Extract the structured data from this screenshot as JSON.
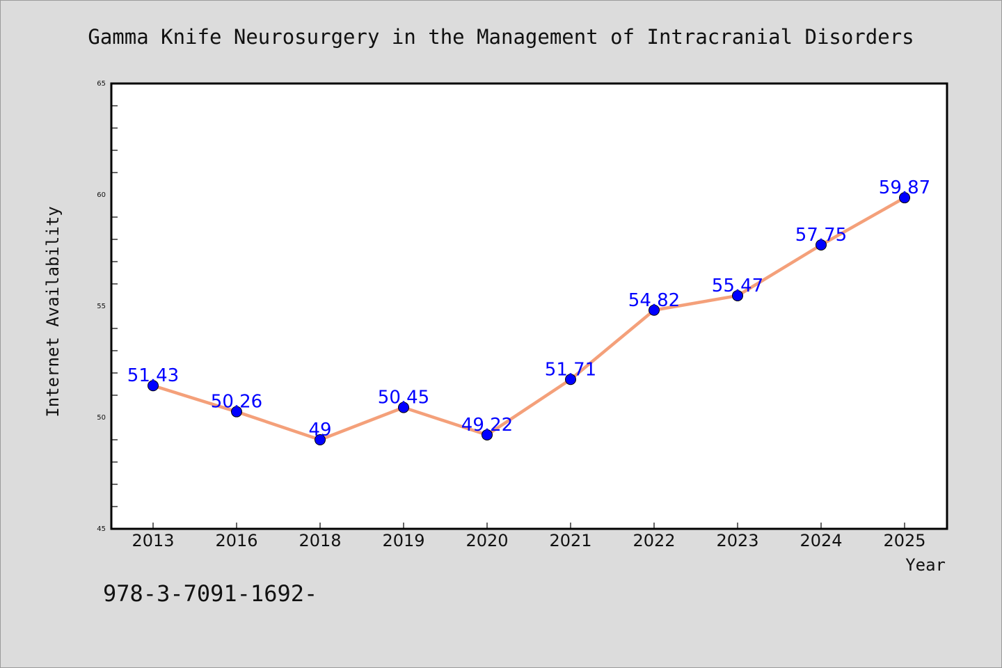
{
  "chart_data": {
    "type": "line",
    "title": "Gamma Knife Neurosurgery in the Management of Intracranial Disorders",
    "xlabel": "Year",
    "ylabel": "Internet Availability",
    "categories": [
      "2013",
      "2016",
      "2018",
      "2019",
      "2020",
      "2021",
      "2022",
      "2023",
      "2024",
      "2025"
    ],
    "series": [
      {
        "values": [
          51.43,
          50.26,
          49,
          50.45,
          49.22,
          51.71,
          54.82,
          55.47,
          57.75,
          59.87
        ],
        "data_labels": [
          "51.43",
          "50.26",
          "49",
          "50.45",
          "49.22",
          "51.71",
          "54.82",
          "55.47",
          "57.75",
          "59.87"
        ],
        "line_color": "#f4a07a",
        "marker_color": "#0000ff"
      }
    ],
    "ylim": [
      45,
      65
    ],
    "yticks": [
      "45",
      "50",
      "55",
      "60",
      "65"
    ],
    "grid": false,
    "legend": "none"
  },
  "footnote": "978-3-7091-1692-"
}
